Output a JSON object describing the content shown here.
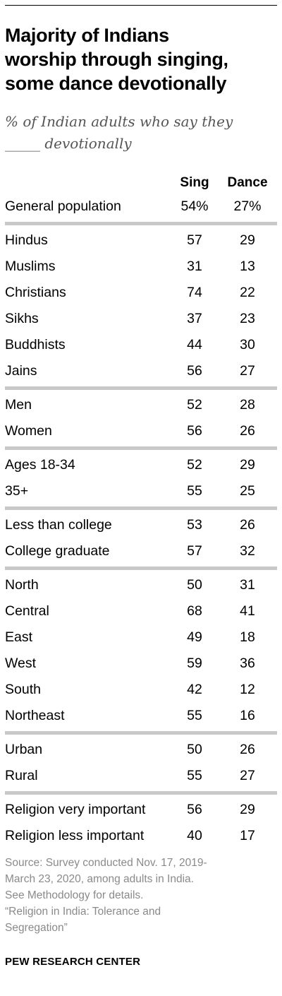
{
  "header": {
    "title": "Majority of Indians\nworship through singing,\nsome dance devotionally",
    "subtitle": "% of Indian adults who say they\n_____ devotionally"
  },
  "chart_data": {
    "type": "table",
    "columns": [
      "Sing",
      "Dance"
    ],
    "groups": [
      {
        "rows": [
          {
            "label": "General population",
            "values": [
              "54%",
              "27%"
            ]
          }
        ]
      },
      {
        "rows": [
          {
            "label": "Hindus",
            "values": [
              "57",
              "29"
            ]
          },
          {
            "label": "Muslims",
            "values": [
              "31",
              "13"
            ]
          },
          {
            "label": "Christians",
            "values": [
              "74",
              "22"
            ]
          },
          {
            "label": "Sikhs",
            "values": [
              "37",
              "23"
            ]
          },
          {
            "label": "Buddhists",
            "values": [
              "44",
              "30"
            ]
          },
          {
            "label": "Jains",
            "values": [
              "56",
              "27"
            ]
          }
        ]
      },
      {
        "rows": [
          {
            "label": "Men",
            "values": [
              "52",
              "28"
            ]
          },
          {
            "label": "Women",
            "values": [
              "56",
              "26"
            ]
          }
        ]
      },
      {
        "rows": [
          {
            "label": "Ages 18-34",
            "values": [
              "52",
              "29"
            ]
          },
          {
            "label": "35+",
            "values": [
              "55",
              "25"
            ]
          }
        ]
      },
      {
        "rows": [
          {
            "label": "Less than college",
            "values": [
              "53",
              "26"
            ]
          },
          {
            "label": "College graduate",
            "values": [
              "57",
              "32"
            ]
          }
        ]
      },
      {
        "rows": [
          {
            "label": "North",
            "values": [
              "50",
              "31"
            ]
          },
          {
            "label": "Central",
            "values": [
              "68",
              "41"
            ]
          },
          {
            "label": "East",
            "values": [
              "49",
              "18"
            ]
          },
          {
            "label": "West",
            "values": [
              "59",
              "36"
            ]
          },
          {
            "label": "South",
            "values": [
              "42",
              "12"
            ]
          },
          {
            "label": "Northeast",
            "values": [
              "55",
              "16"
            ]
          }
        ]
      },
      {
        "rows": [
          {
            "label": "Urban",
            "values": [
              "50",
              "26"
            ]
          },
          {
            "label": "Rural",
            "values": [
              "55",
              "27"
            ]
          }
        ]
      },
      {
        "rows": [
          {
            "label": "Religion very important",
            "values": [
              "56",
              "29"
            ]
          },
          {
            "label": "Religion less important",
            "values": [
              "40",
              "17"
            ]
          }
        ]
      }
    ]
  },
  "footer": {
    "source": "Source: Survey conducted Nov. 17, 2019-\nMarch 23, 2020, among adults in India.\nSee Methodology for details.\n“Religion in India: Tolerance and\nSegregation”",
    "logo": "PEW RESEARCH CENTER"
  }
}
